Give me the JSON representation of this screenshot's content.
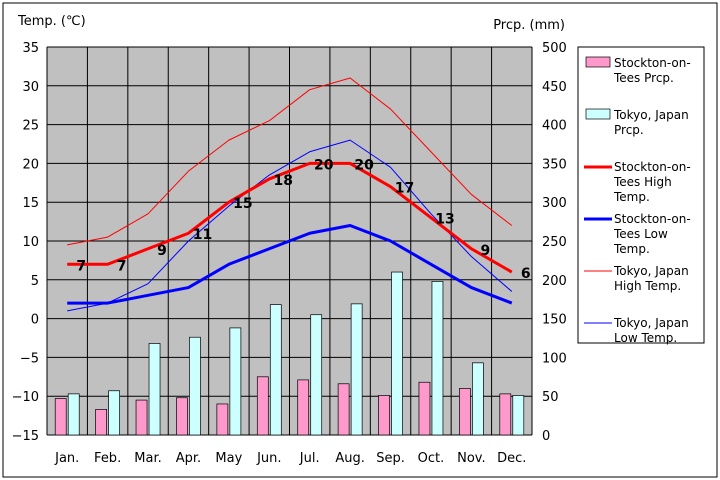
{
  "chart_data": {
    "type": "bar+line",
    "categories": [
      "Jan.",
      "Feb.",
      "Mar.",
      "Apr.",
      "May",
      "Jun.",
      "Jul.",
      "Aug.",
      "Sep.",
      "Oct.",
      "Nov.",
      "Dec."
    ],
    "left_axis": {
      "title": "Temp. (℃)",
      "range": [
        -15,
        35
      ],
      "ticks": [
        35,
        30,
        25,
        20,
        15,
        10,
        5,
        0,
        -5,
        -10,
        -15
      ]
    },
    "right_axis": {
      "title": "Prcp. (mm)",
      "range": [
        0,
        500
      ],
      "ticks": [
        500,
        450,
        400,
        350,
        300,
        250,
        200,
        150,
        100,
        50,
        0
      ]
    },
    "grid": true,
    "legend_position": "right",
    "bar_series": [
      {
        "name": "Stockton-on-Tees Prcp.",
        "legend_lines": [
          "Stockton-on-",
          "Tees Prcp."
        ],
        "color": "#ff99cc",
        "values": [
          47,
          33,
          45,
          48,
          40,
          75,
          71,
          66,
          51,
          68,
          60,
          53
        ]
      },
      {
        "name": "Tokyo, Japan Prcp.",
        "legend_lines": [
          "Tokyo, Japan",
          "Prcp."
        ],
        "color": "#ccffff",
        "values": [
          53,
          57,
          118,
          126,
          138,
          168,
          155,
          169,
          210,
          198,
          93,
          51
        ]
      }
    ],
    "line_series": [
      {
        "name": "Stockton-on-Tees High Temp.",
        "legend_lines": [
          "Stockton-on-",
          "Tees High",
          "Temp."
        ],
        "color": "#ff0000",
        "width": 3,
        "labeled": true,
        "values": [
          7,
          7,
          9,
          11,
          15,
          18,
          20,
          20,
          17,
          13,
          9,
          6
        ]
      },
      {
        "name": "Stockton-on-Tees Low Temp.",
        "legend_lines": [
          "Stockton-on-",
          "Tees Low",
          "Temp."
        ],
        "color": "#0000ff",
        "width": 3,
        "labeled": false,
        "values": [
          2,
          2,
          3,
          4,
          7,
          9,
          11,
          12,
          10,
          7,
          4,
          2
        ]
      },
      {
        "name": "Tokyo, Japan High Temp.",
        "legend_lines": [
          "Tokyo, Japan",
          "High Temp."
        ],
        "color": "#ff0000",
        "width": 1,
        "labeled": false,
        "values": [
          9.5,
          10.5,
          13.5,
          19,
          23,
          25.5,
          29.5,
          31,
          27,
          21.5,
          16,
          12
        ]
      },
      {
        "name": "Tokyo, Japan Low Temp.",
        "legend_lines": [
          "Tokyo, Japan",
          "Low Temp."
        ],
        "color": "#0000ff",
        "width": 1,
        "labeled": false,
        "values": [
          1,
          2,
          4.5,
          10,
          14.5,
          18.5,
          21.5,
          23,
          19.5,
          13.5,
          8,
          3.5
        ]
      }
    ],
    "colors": {
      "plot_background": "#c0c0c0",
      "grid": "#000000"
    }
  }
}
